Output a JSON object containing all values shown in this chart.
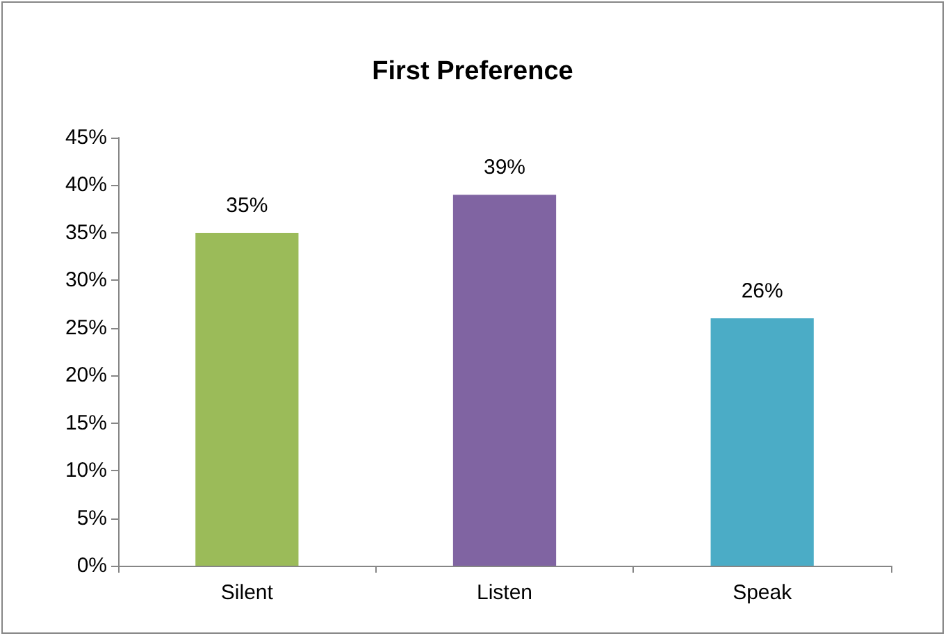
{
  "chart_data": {
    "type": "bar",
    "title": "First Preference",
    "categories": [
      "Silent",
      "Listen",
      "Speak"
    ],
    "values": [
      35,
      39,
      26
    ],
    "colors": [
      "#9bbb59",
      "#8064a2",
      "#4bacc6"
    ],
    "value_labels": [
      "35%",
      "39%",
      "26%"
    ],
    "ylim": [
      0,
      45
    ],
    "yticks": [
      {
        "value": 0,
        "label": "0%"
      },
      {
        "value": 5,
        "label": "5%"
      },
      {
        "value": 10,
        "label": "10%"
      },
      {
        "value": 15,
        "label": "15%"
      },
      {
        "value": 20,
        "label": "20%"
      },
      {
        "value": 25,
        "label": "25%"
      },
      {
        "value": 30,
        "label": "30%"
      },
      {
        "value": 35,
        "label": "35%"
      },
      {
        "value": 40,
        "label": "40%"
      },
      {
        "value": 45,
        "label": "45%"
      }
    ],
    "grid": false
  }
}
